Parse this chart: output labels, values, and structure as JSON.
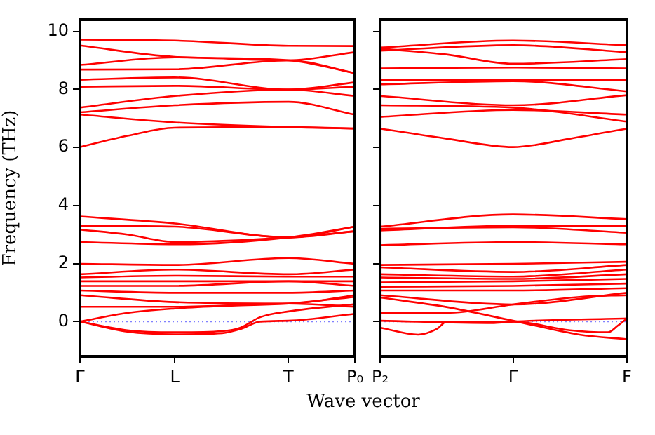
{
  "chart_data": [
    {
      "type": "line",
      "ylabel": "Frequency (THz)",
      "xlabel": "Wave vector",
      "marker": "none",
      "categories": [
        "Γ",
        null,
        null,
        null,
        null,
        null,
        null,
        null,
        null,
        null,
        "L",
        null,
        null,
        null,
        null,
        null,
        null,
        null,
        null,
        null,
        null,
        null,
        "T",
        null,
        null,
        null,
        null,
        null,
        null,
        "P₀"
      ],
      "ylim": [
        -1.2,
        10.4
      ],
      "yticks": [
        0,
        2,
        4,
        6,
        8,
        10
      ],
      "ref_lines": [
        {
          "axis": "y",
          "value": 0,
          "color": "#8080ff",
          "line_style": "dotted"
        }
      ],
      "series": [
        {
          "color": "#ff0000",
          "values": [
            9.71,
            null,
            null,
            null,
            null,
            null,
            null,
            null,
            null,
            null,
            9.68,
            null,
            null,
            null,
            null,
            null,
            null,
            null,
            null,
            null,
            null,
            null,
            9.5,
            null,
            null,
            null,
            null,
            null,
            null,
            9.49
          ]
        },
        {
          "color": "#ff0000",
          "values": [
            9.51,
            null,
            null,
            null,
            null,
            null,
            null,
            null,
            null,
            null,
            9.12,
            null,
            null,
            null,
            null,
            null,
            null,
            null,
            null,
            null,
            null,
            null,
            9.0,
            null,
            null,
            null,
            null,
            null,
            null,
            8.56
          ]
        },
        {
          "color": "#ff0000",
          "values": [
            8.84,
            null,
            null,
            null,
            null,
            null,
            null,
            null,
            null,
            null,
            9.1,
            null,
            null,
            null,
            null,
            null,
            null,
            null,
            null,
            null,
            null,
            null,
            9.0,
            null,
            null,
            null,
            null,
            null,
            null,
            9.28
          ]
        },
        {
          "color": "#ff0000",
          "values": [
            8.68,
            null,
            null,
            null,
            null,
            null,
            null,
            null,
            null,
            null,
            8.69,
            null,
            null,
            null,
            null,
            null,
            null,
            null,
            null,
            null,
            null,
            null,
            9.0,
            null,
            null,
            null,
            null,
            null,
            null,
            8.56
          ]
        },
        {
          "color": "#ff0000",
          "values": [
            8.33,
            null,
            null,
            null,
            null,
            null,
            null,
            null,
            null,
            null,
            8.41,
            null,
            null,
            null,
            null,
            null,
            null,
            null,
            null,
            null,
            null,
            null,
            7.99,
            null,
            null,
            null,
            null,
            null,
            null,
            8.24
          ]
        },
        {
          "color": "#ff0000",
          "values": [
            8.09,
            null,
            null,
            null,
            null,
            null,
            null,
            null,
            null,
            null,
            8.12,
            null,
            null,
            null,
            null,
            null,
            null,
            null,
            null,
            null,
            null,
            null,
            7.99,
            null,
            null,
            null,
            null,
            null,
            null,
            8.09
          ]
        },
        {
          "color": "#ff0000",
          "values": [
            7.37,
            null,
            null,
            null,
            null,
            null,
            null,
            null,
            null,
            null,
            7.77,
            null,
            null,
            null,
            null,
            null,
            null,
            null,
            null,
            null,
            null,
            null,
            7.99,
            null,
            null,
            null,
            null,
            null,
            null,
            7.77
          ]
        },
        {
          "color": "#ff0000",
          "values": [
            7.21,
            null,
            null,
            null,
            null,
            null,
            null,
            null,
            null,
            null,
            7.45,
            null,
            null,
            null,
            null,
            null,
            null,
            null,
            null,
            null,
            null,
            null,
            7.57,
            null,
            null,
            null,
            null,
            null,
            null,
            7.13
          ]
        },
        {
          "color": "#ff0000",
          "values": [
            7.13,
            null,
            null,
            null,
            null,
            null,
            null,
            null,
            null,
            null,
            6.86,
            null,
            null,
            null,
            null,
            null,
            null,
            null,
            null,
            null,
            null,
            null,
            6.7,
            null,
            null,
            null,
            null,
            null,
            null,
            6.65
          ]
        },
        {
          "color": "#ff0000",
          "values": [
            6.01,
            null,
            null,
            null,
            null,
            6.4,
            null,
            null,
            null,
            null,
            6.68,
            null,
            null,
            null,
            null,
            null,
            null,
            null,
            null,
            null,
            null,
            null,
            6.7,
            null,
            null,
            null,
            null,
            null,
            null,
            6.65
          ]
        },
        {
          "color": "#ff0000",
          "values": [
            3.62,
            null,
            null,
            null,
            null,
            null,
            null,
            null,
            null,
            null,
            3.38,
            null,
            null,
            null,
            null,
            null,
            null,
            null,
            null,
            null,
            null,
            null,
            2.9,
            null,
            null,
            null,
            null,
            null,
            null,
            3.27
          ]
        },
        {
          "color": "#ff0000",
          "values": [
            3.3,
            null,
            null,
            null,
            null,
            null,
            null,
            null,
            null,
            null,
            3.27,
            null,
            null,
            null,
            null,
            null,
            null,
            null,
            null,
            null,
            null,
            null,
            2.9,
            null,
            null,
            null,
            null,
            null,
            null,
            3.11
          ]
        },
        {
          "color": "#ff0000",
          "values": [
            3.17,
            null,
            null,
            null,
            null,
            3.0,
            null,
            null,
            null,
            null,
            2.74,
            null,
            null,
            null,
            null,
            null,
            null,
            null,
            null,
            null,
            null,
            null,
            2.9,
            null,
            null,
            null,
            null,
            null,
            null,
            3.11
          ]
        },
        {
          "color": "#ff0000",
          "values": [
            2.74,
            null,
            null,
            null,
            null,
            null,
            null,
            null,
            null,
            null,
            2.66,
            null,
            null,
            null,
            null,
            null,
            null,
            null,
            null,
            null,
            null,
            null,
            2.9,
            null,
            null,
            null,
            null,
            null,
            null,
            3.27
          ]
        },
        {
          "color": "#ff0000",
          "values": [
            1.99,
            null,
            null,
            null,
            null,
            null,
            null,
            null,
            null,
            null,
            1.95,
            null,
            null,
            null,
            null,
            null,
            null,
            null,
            null,
            null,
            null,
            null,
            2.19,
            null,
            null,
            null,
            null,
            null,
            null,
            1.99
          ]
        },
        {
          "color": "#ff0000",
          "values": [
            1.63,
            null,
            null,
            null,
            null,
            null,
            null,
            null,
            null,
            null,
            1.79,
            null,
            null,
            null,
            null,
            null,
            null,
            null,
            null,
            null,
            null,
            null,
            1.63,
            null,
            null,
            null,
            null,
            null,
            null,
            1.79
          ]
        },
        {
          "color": "#ff0000",
          "values": [
            1.52,
            null,
            null,
            null,
            null,
            null,
            null,
            null,
            null,
            null,
            1.58,
            null,
            null,
            null,
            null,
            null,
            null,
            null,
            null,
            null,
            null,
            null,
            1.55,
            null,
            null,
            null,
            null,
            null,
            null,
            1.55
          ]
        },
        {
          "color": "#ff0000",
          "values": [
            1.39,
            null,
            null,
            null,
            null,
            null,
            null,
            null,
            null,
            null,
            1.39,
            null,
            null,
            null,
            null,
            null,
            null,
            null,
            null,
            null,
            null,
            null,
            1.39,
            null,
            null,
            null,
            null,
            null,
            null,
            1.39
          ]
        },
        {
          "color": "#ff0000",
          "values": [
            1.23,
            null,
            null,
            null,
            null,
            null,
            null,
            null,
            null,
            null,
            1.23,
            null,
            null,
            null,
            null,
            null,
            null,
            null,
            null,
            null,
            null,
            null,
            1.39,
            null,
            null,
            null,
            null,
            null,
            null,
            1.23
          ]
        },
        {
          "color": "#ff0000",
          "values": [
            1.07,
            null,
            null,
            null,
            null,
            null,
            null,
            null,
            null,
            null,
            0.99,
            null,
            null,
            null,
            null,
            null,
            null,
            null,
            null,
            null,
            null,
            null,
            0.99,
            null,
            null,
            null,
            null,
            null,
            null,
            1.07
          ]
        },
        {
          "color": "#ff0000",
          "values": [
            0.91,
            null,
            null,
            null,
            null,
            null,
            null,
            null,
            null,
            null,
            0.67,
            null,
            null,
            null,
            null,
            null,
            null,
            null,
            null,
            null,
            null,
            null,
            0.62,
            null,
            null,
            null,
            null,
            null,
            null,
            0.91
          ]
        },
        {
          "color": "#ff0000",
          "values": [
            0.51,
            null,
            null,
            null,
            null,
            null,
            null,
            null,
            null,
            null,
            0.51,
            null,
            null,
            null,
            null,
            null,
            null,
            null,
            null,
            null,
            null,
            null,
            0.62,
            null,
            null,
            null,
            null,
            null,
            null,
            0.51
          ]
        },
        {
          "color": "#ff0000",
          "values": [
            0,
            null,
            null,
            null,
            null,
            0.3,
            null,
            null,
            null,
            null,
            0.45,
            null,
            null,
            null,
            null,
            null,
            0.55,
            null,
            null,
            null,
            null,
            null,
            0.62,
            null,
            null,
            null,
            null,
            null,
            null,
            0.85
          ]
        },
        {
          "color": "#ff0000",
          "values": [
            0,
            null,
            null,
            null,
            null,
            -0.3,
            null,
            null,
            null,
            null,
            -0.37,
            null,
            null,
            null,
            null,
            -0.33,
            null,
            -0.2,
            null,
            0.15,
            null,
            null,
            0.35,
            null,
            null,
            null,
            null,
            null,
            null,
            0.6
          ]
        },
        {
          "color": "#ff0000",
          "values": [
            0,
            null,
            null,
            null,
            null,
            -0.35,
            null,
            null,
            null,
            null,
            -0.44,
            null,
            null,
            null,
            null,
            -0.4,
            null,
            -0.25,
            null,
            0,
            null,
            null,
            0.03,
            null,
            null,
            null,
            null,
            null,
            null,
            0.27
          ]
        }
      ]
    },
    {
      "type": "line",
      "marker": "none",
      "tick_labels": "x",
      "categories": [
        "P₂",
        null,
        null,
        null,
        null,
        null,
        null,
        null,
        null,
        null,
        null,
        null,
        null,
        null,
        "Γ",
        null,
        null,
        null,
        null,
        null,
        null,
        null,
        null,
        null,
        null,
        null,
        "F"
      ],
      "ylim": [
        -1.2,
        10.4
      ],
      "yticks": [
        0,
        2,
        4,
        6,
        8,
        10
      ],
      "ref_lines": [
        {
          "axis": "y",
          "value": 0,
          "color": "#8080ff",
          "line_style": "dotted"
        }
      ],
      "series": [
        {
          "color": "#ff0000",
          "values": [
            9.44,
            null,
            null,
            null,
            null,
            null,
            null,
            null,
            null,
            null,
            null,
            null,
            null,
            null,
            9.68,
            null,
            null,
            null,
            null,
            null,
            null,
            null,
            null,
            null,
            null,
            null,
            9.52
          ]
        },
        {
          "color": "#ff0000",
          "values": [
            9.33,
            null,
            null,
            null,
            null,
            null,
            null,
            null,
            null,
            null,
            null,
            null,
            null,
            null,
            9.52,
            null,
            null,
            null,
            null,
            null,
            null,
            null,
            null,
            null,
            null,
            null,
            9.28
          ]
        },
        {
          "color": "#ff0000",
          "values": [
            9.4,
            null,
            null,
            null,
            null,
            null,
            null,
            9.2,
            null,
            null,
            null,
            null,
            null,
            null,
            8.88,
            null,
            null,
            null,
            null,
            null,
            null,
            null,
            null,
            null,
            null,
            null,
            9.04
          ]
        },
        {
          "color": "#ff0000",
          "values": [
            8.72,
            null,
            null,
            null,
            null,
            null,
            null,
            null,
            null,
            null,
            null,
            null,
            null,
            null,
            8.75,
            null,
            null,
            null,
            null,
            null,
            null,
            null,
            null,
            null,
            null,
            null,
            8.72
          ]
        },
        {
          "color": "#ff0000",
          "values": [
            8.33,
            null,
            null,
            null,
            null,
            null,
            null,
            null,
            null,
            null,
            null,
            null,
            null,
            null,
            8.33,
            null,
            null,
            null,
            null,
            null,
            null,
            null,
            null,
            null,
            null,
            null,
            8.33
          ]
        },
        {
          "color": "#ff0000",
          "values": [
            8.17,
            null,
            null,
            null,
            null,
            null,
            null,
            null,
            null,
            null,
            null,
            null,
            null,
            null,
            8.28,
            null,
            null,
            null,
            null,
            null,
            null,
            null,
            null,
            null,
            null,
            null,
            7.93
          ]
        },
        {
          "color": "#ff0000",
          "values": [
            7.77,
            null,
            null,
            null,
            null,
            null,
            null,
            null,
            null,
            null,
            null,
            null,
            null,
            null,
            7.45,
            null,
            null,
            null,
            null,
            null,
            null,
            null,
            null,
            null,
            null,
            null,
            7.8
          ]
        },
        {
          "color": "#ff0000",
          "values": [
            7.45,
            null,
            null,
            null,
            null,
            null,
            null,
            null,
            null,
            null,
            null,
            null,
            null,
            null,
            7.37,
            null,
            null,
            null,
            null,
            null,
            null,
            null,
            null,
            null,
            null,
            null,
            6.89
          ]
        },
        {
          "color": "#ff0000",
          "values": [
            7.05,
            null,
            null,
            null,
            null,
            null,
            null,
            null,
            null,
            null,
            null,
            null,
            null,
            null,
            7.29,
            null,
            null,
            null,
            null,
            null,
            null,
            null,
            null,
            null,
            null,
            null,
            7.13
          ]
        },
        {
          "color": "#ff0000",
          "values": [
            6.65,
            null,
            null,
            null,
            null,
            null,
            null,
            6.3,
            null,
            null,
            null,
            null,
            null,
            null,
            6.01,
            null,
            null,
            null,
            null,
            null,
            6.3,
            null,
            null,
            null,
            null,
            null,
            6.65
          ]
        },
        {
          "color": "#ff0000",
          "values": [
            3.27,
            null,
            null,
            null,
            null,
            null,
            null,
            null,
            null,
            null,
            null,
            null,
            null,
            null,
            3.69,
            null,
            null,
            null,
            null,
            null,
            null,
            null,
            null,
            null,
            null,
            null,
            3.53
          ]
        },
        {
          "color": "#ff0000",
          "values": [
            3.14,
            null,
            null,
            null,
            null,
            null,
            null,
            null,
            null,
            null,
            null,
            null,
            null,
            null,
            3.3,
            null,
            null,
            null,
            null,
            null,
            null,
            null,
            null,
            null,
            null,
            null,
            3.3
          ]
        },
        {
          "color": "#ff0000",
          "values": [
            3.2,
            null,
            null,
            null,
            null,
            null,
            null,
            null,
            null,
            null,
            null,
            null,
            null,
            null,
            3.25,
            null,
            null,
            null,
            null,
            null,
            null,
            null,
            null,
            null,
            null,
            null,
            3.06
          ]
        },
        {
          "color": "#ff0000",
          "values": [
            2.63,
            null,
            null,
            null,
            null,
            null,
            null,
            null,
            null,
            null,
            null,
            null,
            null,
            null,
            2.74,
            null,
            null,
            null,
            null,
            null,
            null,
            null,
            null,
            null,
            null,
            null,
            2.66
          ]
        },
        {
          "color": "#ff0000",
          "values": [
            1.95,
            null,
            null,
            null,
            null,
            null,
            null,
            null,
            null,
            null,
            null,
            null,
            null,
            null,
            1.99,
            null,
            null,
            null,
            null,
            null,
            null,
            null,
            null,
            null,
            null,
            null,
            2.06
          ]
        },
        {
          "color": "#ff0000",
          "values": [
            1.87,
            null,
            null,
            null,
            null,
            null,
            null,
            null,
            null,
            null,
            null,
            null,
            null,
            null,
            1.71,
            null,
            null,
            null,
            null,
            null,
            null,
            null,
            null,
            null,
            null,
            null,
            1.95
          ]
        },
        {
          "color": "#ff0000",
          "values": [
            1.63,
            null,
            null,
            null,
            null,
            null,
            null,
            null,
            null,
            null,
            null,
            null,
            null,
            null,
            1.55,
            null,
            null,
            null,
            null,
            null,
            null,
            null,
            null,
            null,
            null,
            null,
            1.79
          ]
        },
        {
          "color": "#ff0000",
          "values": [
            1.52,
            null,
            null,
            null,
            null,
            null,
            null,
            null,
            null,
            null,
            null,
            null,
            null,
            null,
            1.47,
            null,
            null,
            null,
            null,
            null,
            null,
            null,
            null,
            null,
            null,
            null,
            1.63
          ]
        },
        {
          "color": "#ff0000",
          "values": [
            1.35,
            null,
            null,
            null,
            null,
            null,
            null,
            null,
            null,
            null,
            null,
            null,
            null,
            null,
            1.39,
            null,
            null,
            null,
            null,
            null,
            null,
            null,
            null,
            null,
            null,
            null,
            1.47
          ]
        },
        {
          "color": "#ff0000",
          "values": [
            1.2,
            null,
            null,
            null,
            null,
            null,
            null,
            null,
            null,
            null,
            null,
            null,
            null,
            null,
            1.23,
            null,
            null,
            null,
            null,
            null,
            null,
            null,
            null,
            null,
            null,
            null,
            1.31
          ]
        },
        {
          "color": "#ff0000",
          "values": [
            1.07,
            null,
            null,
            null,
            null,
            null,
            null,
            null,
            null,
            null,
            null,
            null,
            null,
            null,
            1.07,
            null,
            null,
            null,
            null,
            null,
            null,
            null,
            null,
            null,
            null,
            null,
            1.15
          ]
        },
        {
          "color": "#ff0000",
          "values": [
            0.91,
            null,
            null,
            null,
            null,
            null,
            null,
            null,
            null,
            null,
            null,
            null,
            null,
            null,
            0.59,
            null,
            null,
            null,
            null,
            null,
            null,
            null,
            null,
            null,
            null,
            null,
            0.99
          ]
        },
        {
          "color": "#ff0000",
          "values": [
            0.83,
            null,
            null,
            null,
            null,
            null,
            null,
            0.5,
            null,
            null,
            null,
            null,
            null,
            null,
            0.03,
            null,
            null,
            null,
            null,
            null,
            null,
            -0.45,
            null,
            null,
            null,
            null,
            -0.61
          ]
        },
        {
          "color": "#ff0000",
          "values": [
            0.3,
            null,
            null,
            null,
            null,
            null,
            null,
            0.3,
            null,
            null,
            null,
            null,
            null,
            null,
            0.59,
            null,
            null,
            null,
            null,
            null,
            null,
            0.85,
            null,
            null,
            null,
            null,
            0.91
          ]
        },
        {
          "color": "#ff0000",
          "values": [
            -0.21,
            null,
            null,
            null,
            -0.45,
            null,
            -0.25,
            0,
            null,
            null,
            null,
            null,
            null,
            null,
            0,
            null,
            null,
            null,
            null,
            null,
            -0.3,
            null,
            null,
            null,
            -0.37,
            -0.15,
            0.11
          ]
        },
        {
          "color": "#ff0000",
          "values": [
            0.03,
            null,
            null,
            null,
            null,
            null,
            null,
            null,
            null,
            null,
            null,
            null,
            -0.05,
            null,
            0,
            null,
            null,
            null,
            null,
            null,
            null,
            null,
            null,
            null,
            null,
            null,
            0.11
          ]
        }
      ]
    }
  ]
}
